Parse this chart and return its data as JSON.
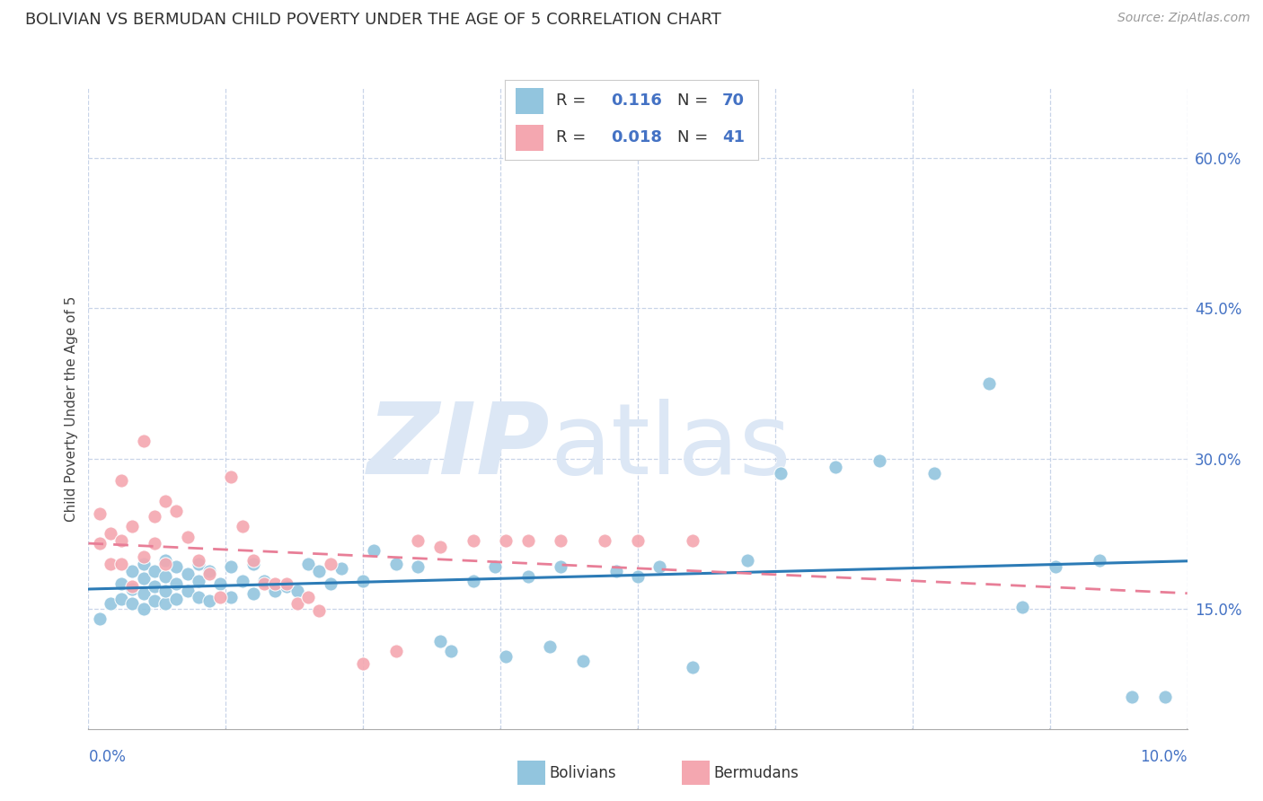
{
  "title": "BOLIVIAN VS BERMUDAN CHILD POVERTY UNDER THE AGE OF 5 CORRELATION CHART",
  "source": "Source: ZipAtlas.com",
  "ylabel": "Child Poverty Under the Age of 5",
  "yticks": [
    0.15,
    0.3,
    0.45,
    0.6
  ],
  "ytick_labels": [
    "15.0%",
    "30.0%",
    "45.0%",
    "60.0%"
  ],
  "xlim": [
    0.0,
    0.1
  ],
  "ylim": [
    0.03,
    0.67
  ],
  "bolivia_color": "#92c5de",
  "bermuda_color": "#f4a7b0",
  "bolivia_line_color": "#2c7bb6",
  "bermuda_line_color": "#e87e97",
  "background_color": "#ffffff",
  "grid_color": "#c8d4e8",
  "watermark_color": "#dce7f5",
  "title_color": "#333333",
  "axis_label_color": "#4472c4",
  "source_color": "#999999",
  "bolivia_x": [
    0.001,
    0.002,
    0.003,
    0.003,
    0.004,
    0.004,
    0.004,
    0.005,
    0.005,
    0.005,
    0.005,
    0.006,
    0.006,
    0.006,
    0.007,
    0.007,
    0.007,
    0.007,
    0.008,
    0.008,
    0.008,
    0.009,
    0.009,
    0.01,
    0.01,
    0.01,
    0.011,
    0.011,
    0.012,
    0.013,
    0.013,
    0.014,
    0.015,
    0.015,
    0.016,
    0.017,
    0.018,
    0.019,
    0.02,
    0.021,
    0.022,
    0.023,
    0.025,
    0.026,
    0.028,
    0.03,
    0.032,
    0.033,
    0.035,
    0.037,
    0.038,
    0.04,
    0.042,
    0.043,
    0.045,
    0.048,
    0.05,
    0.052,
    0.055,
    0.06,
    0.063,
    0.068,
    0.072,
    0.077,
    0.082,
    0.085,
    0.088,
    0.092,
    0.095,
    0.098
  ],
  "bolivia_y": [
    0.14,
    0.155,
    0.16,
    0.175,
    0.155,
    0.17,
    0.188,
    0.15,
    0.165,
    0.18,
    0.195,
    0.158,
    0.172,
    0.188,
    0.155,
    0.168,
    0.182,
    0.198,
    0.16,
    0.175,
    0.192,
    0.168,
    0.185,
    0.162,
    0.178,
    0.195,
    0.158,
    0.188,
    0.175,
    0.162,
    0.192,
    0.178,
    0.165,
    0.195,
    0.178,
    0.168,
    0.172,
    0.168,
    0.195,
    0.188,
    0.175,
    0.19,
    0.178,
    0.208,
    0.195,
    0.192,
    0.118,
    0.108,
    0.178,
    0.192,
    0.102,
    0.182,
    0.112,
    0.192,
    0.098,
    0.188,
    0.182,
    0.192,
    0.092,
    0.198,
    0.285,
    0.292,
    0.298,
    0.285,
    0.375,
    0.152,
    0.192,
    0.198,
    0.062,
    0.062
  ],
  "bermuda_x": [
    0.001,
    0.001,
    0.002,
    0.002,
    0.003,
    0.003,
    0.003,
    0.004,
    0.004,
    0.005,
    0.005,
    0.006,
    0.006,
    0.007,
    0.007,
    0.008,
    0.009,
    0.01,
    0.011,
    0.012,
    0.013,
    0.014,
    0.015,
    0.016,
    0.017,
    0.018,
    0.019,
    0.02,
    0.021,
    0.022,
    0.025,
    0.028,
    0.03,
    0.032,
    0.035,
    0.038,
    0.04,
    0.043,
    0.047,
    0.05,
    0.055
  ],
  "bermuda_y": [
    0.215,
    0.245,
    0.225,
    0.195,
    0.278,
    0.218,
    0.195,
    0.232,
    0.172,
    0.318,
    0.202,
    0.242,
    0.215,
    0.258,
    0.195,
    0.248,
    0.222,
    0.198,
    0.185,
    0.162,
    0.282,
    0.232,
    0.198,
    0.175,
    0.175,
    0.175,
    0.155,
    0.162,
    0.148,
    0.195,
    0.095,
    0.108,
    0.218,
    0.212,
    0.218,
    0.218,
    0.218,
    0.218,
    0.218,
    0.218,
    0.218
  ]
}
